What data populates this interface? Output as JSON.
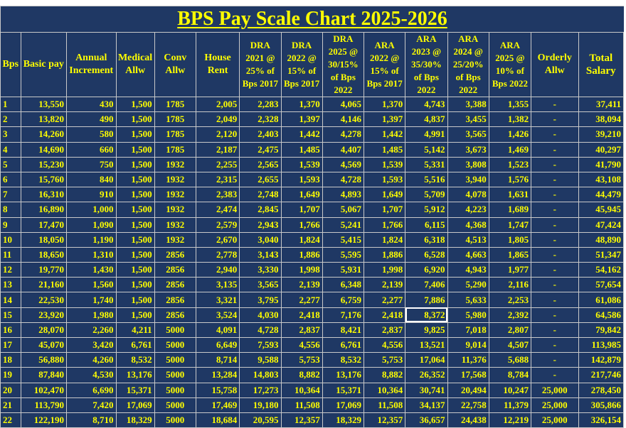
{
  "title": "BPS Pay Scale Chart 2025-2026",
  "headers": [
    "Bps",
    "Basic pay",
    "Annual Increment",
    "Medical Allw",
    "Conv Allw",
    "House Rent",
    "DRA 2021 @ 25% of Bps 2017",
    "DRA 2022 @ 15% of Bps 2017",
    "DRA 2025 @ 30/15% of Bps 2022",
    "ARA 2022 @ 15% of Bps 2017",
    "ARA 2023 @ 35/30% of Bps 2022",
    "ARA 2024 @ 25/20% of Bps 2022",
    "ARA 2025 @ 10% of Bps 2022",
    "Orderly Allw",
    "Total Salary"
  ],
  "rows": [
    [
      "1",
      "13,550",
      "430",
      "1,500",
      "1785",
      "2,005",
      "2,283",
      "1,370",
      "4,065",
      "1,370",
      "4,743",
      "3,388",
      "1,355",
      "-",
      "37,411"
    ],
    [
      "2",
      "13,820",
      "490",
      "1,500",
      "1785",
      "2,049",
      "2,328",
      "1,397",
      "4,146",
      "1,397",
      "4,837",
      "3,455",
      "1,382",
      "-",
      "38,094"
    ],
    [
      "3",
      "14,260",
      "580",
      "1,500",
      "1785",
      "2,120",
      "2,403",
      "1,442",
      "4,278",
      "1,442",
      "4,991",
      "3,565",
      "1,426",
      "-",
      "39,210"
    ],
    [
      "4",
      "14,690",
      "660",
      "1,500",
      "1785",
      "2,187",
      "2,475",
      "1,485",
      "4,407",
      "1,485",
      "5,142",
      "3,673",
      "1,469",
      "-",
      "40,297"
    ],
    [
      "5",
      "15,230",
      "750",
      "1,500",
      "1932",
      "2,255",
      "2,565",
      "1,539",
      "4,569",
      "1,539",
      "5,331",
      "3,808",
      "1,523",
      "-",
      "41,790"
    ],
    [
      "6",
      "15,760",
      "840",
      "1,500",
      "1932",
      "2,315",
      "2,655",
      "1,593",
      "4,728",
      "1,593",
      "5,516",
      "3,940",
      "1,576",
      "-",
      "43,108"
    ],
    [
      "7",
      "16,310",
      "910",
      "1,500",
      "1932",
      "2,383",
      "2,748",
      "1,649",
      "4,893",
      "1,649",
      "5,709",
      "4,078",
      "1,631",
      "-",
      "44,479"
    ],
    [
      "8",
      "16,890",
      "1,000",
      "1,500",
      "1932",
      "2,474",
      "2,845",
      "1,707",
      "5,067",
      "1,707",
      "5,912",
      "4,223",
      "1,689",
      "-",
      "45,945"
    ],
    [
      "9",
      "17,470",
      "1,090",
      "1,500",
      "1932",
      "2,579",
      "2,943",
      "1,766",
      "5,241",
      "1,766",
      "6,115",
      "4,368",
      "1,747",
      "-",
      "47,424"
    ],
    [
      "10",
      "18,050",
      "1,190",
      "1,500",
      "1932",
      "2,670",
      "3,040",
      "1,824",
      "5,415",
      "1,824",
      "6,318",
      "4,513",
      "1,805",
      "-",
      "48,890"
    ],
    [
      "11",
      "18,650",
      "1,310",
      "1,500",
      "2856",
      "2,778",
      "3,143",
      "1,886",
      "5,595",
      "1,886",
      "6,528",
      "4,663",
      "1,865",
      "-",
      "51,347"
    ],
    [
      "12",
      "19,770",
      "1,430",
      "1,500",
      "2856",
      "2,940",
      "3,330",
      "1,998",
      "5,931",
      "1,998",
      "6,920",
      "4,943",
      "1,977",
      "-",
      "54,162"
    ],
    [
      "13",
      "21,160",
      "1,560",
      "1,500",
      "2856",
      "3,135",
      "3,565",
      "2,139",
      "6,348",
      "2,139",
      "7,406",
      "5,290",
      "2,116",
      "-",
      "57,654"
    ],
    [
      "14",
      "22,530",
      "1,740",
      "1,500",
      "2856",
      "3,321",
      "3,795",
      "2,277",
      "6,759",
      "2,277",
      "7,886",
      "5,633",
      "2,253",
      "-",
      "61,086"
    ],
    [
      "15",
      "23,920",
      "1,980",
      "1,500",
      "2856",
      "3,524",
      "4,030",
      "2,418",
      "7,176",
      "2,418",
      "8,372",
      "5,980",
      "2,392",
      "-",
      "64,586"
    ],
    [
      "16",
      "28,070",
      "2,260",
      "4,211",
      "5000",
      "4,091",
      "4,728",
      "2,837",
      "8,421",
      "2,837",
      "9,825",
      "7,018",
      "2,807",
      "-",
      "79,842"
    ],
    [
      "17",
      "45,070",
      "3,420",
      "6,761",
      "5000",
      "6,649",
      "7,593",
      "4,556",
      "6,761",
      "4,556",
      "13,521",
      "9,014",
      "4,507",
      "-",
      "113,985"
    ],
    [
      "18",
      "56,880",
      "4,260",
      "8,532",
      "5000",
      "8,714",
      "9,588",
      "5,753",
      "8,532",
      "5,753",
      "17,064",
      "11,376",
      "5,688",
      "-",
      "142,879"
    ],
    [
      "19",
      "87,840",
      "4,530",
      "13,176",
      "5000",
      "13,284",
      "14,803",
      "8,882",
      "13,176",
      "8,882",
      "26,352",
      "17,568",
      "8,784",
      "-",
      "217,746"
    ],
    [
      "20",
      "102,470",
      "6,690",
      "15,371",
      "5000",
      "15,758",
      "17,273",
      "10,364",
      "15,371",
      "10,364",
      "30,741",
      "20,494",
      "10,247",
      "25,000",
      "278,450"
    ],
    [
      "21",
      "113,790",
      "7,420",
      "17,069",
      "5000",
      "17,469",
      "19,180",
      "11,508",
      "17,069",
      "11,508",
      "34,137",
      "22,758",
      "11,379",
      "25,000",
      "305,866"
    ],
    [
      "22",
      "122,190",
      "8,710",
      "18,329",
      "5000",
      "18,684",
      "20,595",
      "12,357",
      "18,329",
      "12,357",
      "36,657",
      "24,438",
      "12,219",
      "25,000",
      "326,154"
    ]
  ],
  "colors": {
    "cell_background": "#1f3864",
    "cell_text": "#ffff00",
    "grid_line": "#c9c9c9"
  },
  "selected_cell": {
    "row": 15,
    "column": "ARA 2023 @ 35/30% of Bps 2022",
    "value": "8,372"
  }
}
